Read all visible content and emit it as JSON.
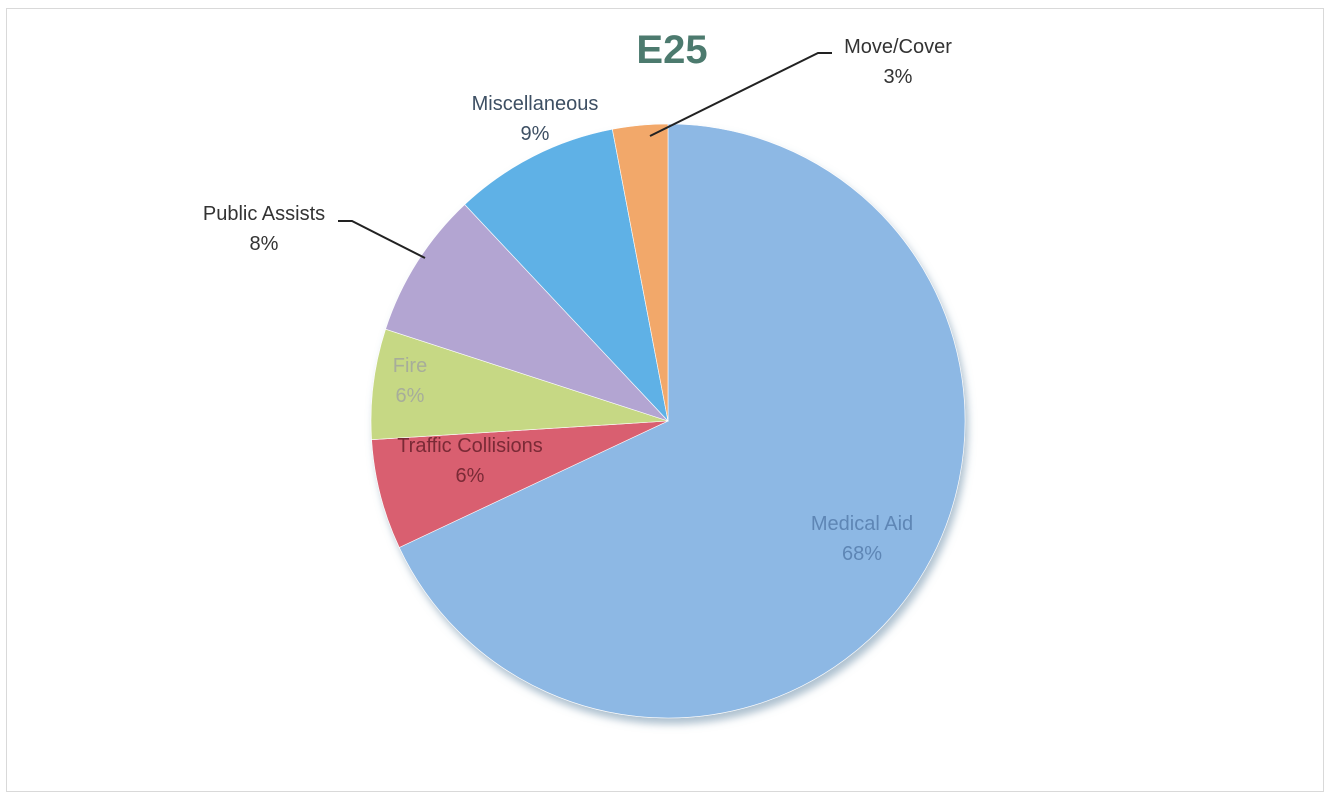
{
  "chart_data": {
    "type": "pie",
    "title": "E25",
    "title_color": "#4c7a6e",
    "slices": [
      {
        "label": "Medical Aid",
        "percent_label": "68%",
        "value": 68,
        "color": "#8db8e4",
        "label_color": "#5e86b5"
      },
      {
        "label": "Traffic Collisions",
        "percent_label": "6%",
        "value": 6,
        "color": "#d95f70",
        "label_color": "#7a2a36"
      },
      {
        "label": "Fire",
        "percent_label": "6%",
        "value": 6,
        "color": "#c6d884",
        "label_color": "#a7ad9a"
      },
      {
        "label": "Public Assists",
        "percent_label": "8%",
        "value": 8,
        "color": "#b3a5d2",
        "label_color": "#333333"
      },
      {
        "label": "Miscellaneous",
        "percent_label": "9%",
        "value": 9,
        "color": "#5fb1e6",
        "label_color": "#3d4f63"
      },
      {
        "label": "Move/Cover",
        "percent_label": "3%",
        "value": 3,
        "color": "#f2a86a",
        "label_color": "#333333"
      }
    ],
    "legend": "none",
    "data_labels": "category and percentage"
  }
}
